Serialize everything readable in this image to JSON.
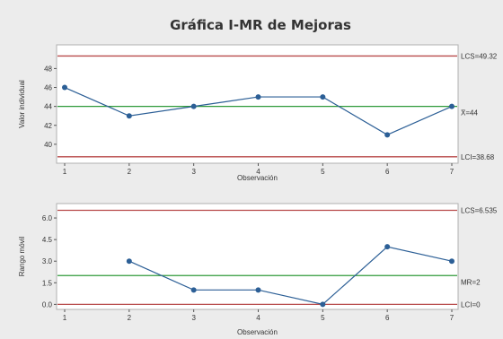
{
  "chart_data": [
    {
      "type": "line",
      "title": "Gráfica I-MR de Mejoras",
      "panel": "individual",
      "x": [
        1,
        2,
        3,
        4,
        5,
        6,
        7
      ],
      "xlabel": "Observación",
      "ylabel": "Valor individual",
      "yticks": [
        40,
        42,
        44,
        46,
        48
      ],
      "ylim": [
        38,
        50.5
      ],
      "series": [
        {
          "values": [
            46,
            43,
            44,
            45,
            45,
            41,
            44
          ]
        }
      ],
      "limits": {
        "ucl": {
          "label": "LCS=49.32",
          "value": 49.32
        },
        "center": {
          "label": "X̄=44",
          "value": 44
        },
        "lcl": {
          "label": "LCI=38.68",
          "value": 38.68
        }
      }
    },
    {
      "type": "line",
      "panel": "moving-range",
      "x": [
        1,
        2,
        3,
        4,
        5,
        6,
        7
      ],
      "xlabel": "Observación",
      "ylabel": "Rango móvil",
      "yticks": [
        "0.0",
        "1.5",
        "3.0",
        "4.5",
        "6.0"
      ],
      "ylim": [
        -0.35,
        7.0
      ],
      "series": [
        {
          "values": [
            null,
            3,
            1,
            1,
            0,
            4,
            3
          ]
        }
      ],
      "limits": {
        "ucl": {
          "label": "LCS=6.535",
          "value": 6.535
        },
        "center": {
          "label": "MR=2",
          "value": 2
        },
        "lcl": {
          "label": "LCI=0",
          "value": 0
        }
      }
    }
  ],
  "colors": {
    "background": "#ececec",
    "plot_background": "#ffffff",
    "series": "#2c5f96",
    "limit": "#b84a4a",
    "center": "#2f9a3a",
    "frame": "#b0b0b0",
    "text": "#333333"
  }
}
